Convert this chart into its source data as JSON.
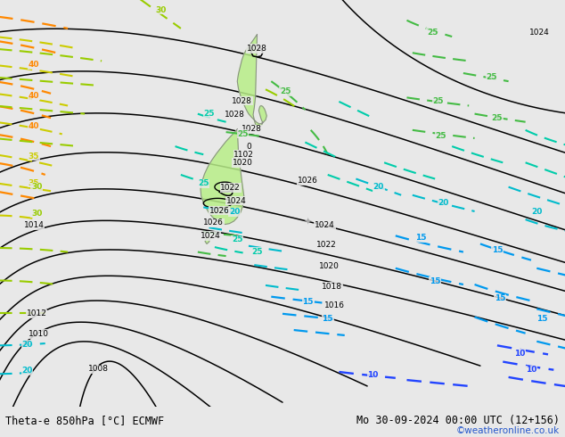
{
  "title_left": "Theta-e 850hPa [°C] ECMWF",
  "title_right": "Mo 30-09-2024 00:00 UTC (12+156)",
  "title_right2": "©weatheronline.co.uk",
  "bg_color": "#e8e8e8",
  "fig_width": 6.34,
  "fig_height": 4.9,
  "dpi": 100,
  "fill_color_warm": "#b8ee88",
  "fill_color_bright": "#ccff99"
}
